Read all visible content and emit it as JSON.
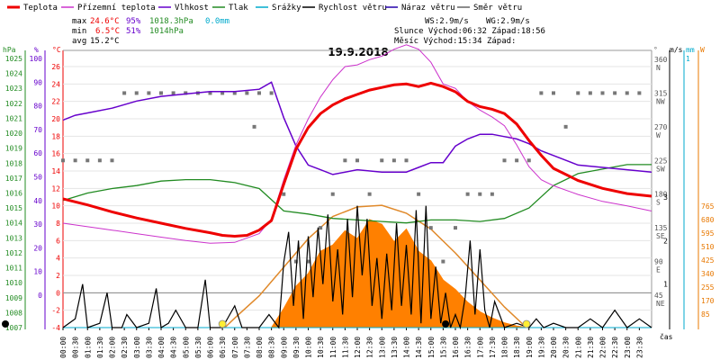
{
  "chart_data": {
    "type": "line",
    "title": "19.9.2018",
    "legend": [
      {
        "name": "Teplota",
        "color": "#ee0000"
      },
      {
        "name": "Přízemní teplota",
        "color": "#cc33cc"
      },
      {
        "name": "Vlhkost",
        "color": "#6600cc"
      },
      {
        "name": "Tlak",
        "color": "#228b22"
      },
      {
        "name": "Srážky",
        "color": "#00aacc"
      },
      {
        "name": "Rychlost větru",
        "color": "#000000"
      },
      {
        "name": "Náraz větru",
        "color": "#2200aa"
      },
      {
        "name": "Směr větru",
        "color": "#666666"
      }
    ],
    "stats": {
      "max_label": "max",
      "max_temp": "24.6°C",
      "max_hum": "95%",
      "max_press": "1018.3hPa",
      "max_rain": "0.0mm",
      "min_label": "min",
      "min_temp": "6.5°C",
      "min_hum": "51%",
      "min_press": "1014hPa",
      "avg_label": "avg",
      "avg_temp": "15.2°C"
    },
    "info": {
      "ws": "WS:2.9m/s",
      "wg": "WG:2.9m/s",
      "sun": "Slunce Východ:06:32 Západ:18:56",
      "moon": "Měsíc  Východ:15:34  Západ:"
    },
    "axes": {
      "hpa_label": "hPa",
      "pct_label": "%",
      "c_label": "°C",
      "deg_label": "°",
      "ms_label": "m/s",
      "mm_label": "mm",
      "w_label": "W",
      "hpa_ticks": [
        "1025",
        "1024",
        "1023",
        "1022",
        "1021",
        "1020",
        "1019",
        "1018",
        "1017",
        "1016",
        "1015",
        "1014",
        "1013",
        "1012",
        "1011",
        "1010",
        "1009",
        "1008",
        "1007"
      ],
      "pct_ticks": [
        "100",
        "90",
        "80",
        "70",
        "60",
        "50",
        "40",
        "30",
        "20",
        "10",
        "0"
      ],
      "c_ticks": [
        "26",
        "24",
        "22",
        "20",
        "18",
        "16",
        "14",
        "12",
        "10",
        "8",
        "6",
        "4",
        "2",
        "0",
        "-2",
        "-4"
      ],
      "dir_ticks": [
        "360 N",
        "315 NW",
        "270 W",
        "225 SW",
        "180 S",
        "135 SE",
        "90 E",
        "45 NE"
      ],
      "ms_ticks": [
        "3",
        "2",
        "1"
      ],
      "mm_ticks": [
        "1"
      ],
      "w_ticks": [
        "765",
        "680",
        "595",
        "510",
        "425",
        "340",
        "255",
        "170",
        "85"
      ],
      "time_label": "čas",
      "time_ticks": [
        "00:00",
        "00:30",
        "01:00",
        "01:30",
        "02:00",
        "02:30",
        "03:00",
        "03:30",
        "04:00",
        "04:30",
        "05:00",
        "05:30",
        "06:00",
        "06:30",
        "07:00",
        "07:30",
        "08:00",
        "08:30",
        "09:00",
        "09:30",
        "10:00",
        "10:30",
        "11:00",
        "11:30",
        "12:00",
        "12:30",
        "13:00",
        "13:30",
        "14:00",
        "14:30",
        "15:00",
        "15:30",
        "16:00",
        "16:30",
        "17:00",
        "17:30",
        "18:00",
        "18:30",
        "19:00",
        "19:30",
        "20:00",
        "20:30",
        "21:00",
        "21:30",
        "22:00",
        "22:30",
        "23:00",
        "23:30"
      ]
    },
    "x_range_hours": [
      0,
      24
    ],
    "temperature_c": [
      [
        0,
        10.8
      ],
      [
        1,
        10.1
      ],
      [
        2,
        9.3
      ],
      [
        3,
        8.6
      ],
      [
        4,
        8.0
      ],
      [
        5,
        7.4
      ],
      [
        6,
        6.9
      ],
      [
        6.5,
        6.6
      ],
      [
        7,
        6.5
      ],
      [
        7.5,
        6.6
      ],
      [
        8,
        7.2
      ],
      [
        8.5,
        8.3
      ],
      [
        9,
        12.5
      ],
      [
        9.5,
        16.5
      ],
      [
        10,
        19.0
      ],
      [
        10.5,
        20.6
      ],
      [
        11,
        21.6
      ],
      [
        11.5,
        22.3
      ],
      [
        12,
        22.8
      ],
      [
        12.5,
        23.3
      ],
      [
        13,
        23.6
      ],
      [
        13.5,
        23.9
      ],
      [
        14,
        24.0
      ],
      [
        14.5,
        23.7
      ],
      [
        15,
        24.1
      ],
      [
        15.5,
        23.7
      ],
      [
        16,
        23.1
      ],
      [
        16.5,
        22.0
      ],
      [
        17,
        21.4
      ],
      [
        17.5,
        21.1
      ],
      [
        18,
        20.6
      ],
      [
        18.5,
        19.4
      ],
      [
        19,
        17.5
      ],
      [
        19.5,
        15.8
      ],
      [
        20,
        14.3
      ],
      [
        21,
        12.9
      ],
      [
        22,
        12.0
      ],
      [
        23,
        11.4
      ],
      [
        24,
        11.1
      ]
    ],
    "ground_temperature_c": [
      [
        0,
        8.0
      ],
      [
        1,
        7.6
      ],
      [
        2,
        7.2
      ],
      [
        3,
        6.8
      ],
      [
        4,
        6.4
      ],
      [
        5,
        6.0
      ],
      [
        6,
        5.7
      ],
      [
        7,
        5.8
      ],
      [
        8,
        6.8
      ],
      [
        8.5,
        8.5
      ],
      [
        9,
        13.0
      ],
      [
        9.5,
        17.0
      ],
      [
        10,
        20.0
      ],
      [
        10.5,
        22.5
      ],
      [
        11,
        24.5
      ],
      [
        11.5,
        26.0
      ],
      [
        12,
        26.2
      ],
      [
        12.5,
        26.8
      ],
      [
        13,
        27.2
      ],
      [
        13.5,
        28.0
      ],
      [
        14,
        28.5
      ],
      [
        14.5,
        28.0
      ],
      [
        15,
        26.5
      ],
      [
        15.5,
        24.0
      ],
      [
        16,
        23.5
      ],
      [
        16.5,
        22.0
      ],
      [
        17,
        21.0
      ],
      [
        17.5,
        20.2
      ],
      [
        18,
        19.2
      ],
      [
        18.5,
        17.0
      ],
      [
        19,
        14.5
      ],
      [
        19.5,
        13.0
      ],
      [
        20,
        12.3
      ],
      [
        21,
        11.3
      ],
      [
        22,
        10.5
      ],
      [
        23,
        10.0
      ],
      [
        24,
        9.4
      ]
    ],
    "humidity_pct": [
      [
        0,
        74
      ],
      [
        0.5,
        76
      ],
      [
        1,
        77
      ],
      [
        2,
        79
      ],
      [
        3,
        82
      ],
      [
        4,
        84
      ],
      [
        5,
        85
      ],
      [
        6,
        86
      ],
      [
        7,
        86
      ],
      [
        8,
        87
      ],
      [
        8.5,
        90
      ],
      [
        9,
        75
      ],
      [
        9.5,
        63
      ],
      [
        10,
        55
      ],
      [
        10.5,
        53
      ],
      [
        11,
        51
      ],
      [
        12,
        53
      ],
      [
        13,
        52
      ],
      [
        14,
        52
      ],
      [
        14.5,
        54
      ],
      [
        15,
        56
      ],
      [
        15.5,
        56
      ],
      [
        16,
        63
      ],
      [
        16.5,
        66
      ],
      [
        17,
        68
      ],
      [
        17.5,
        68
      ],
      [
        18,
        67
      ],
      [
        18.5,
        66
      ],
      [
        19,
        64
      ],
      [
        19.5,
        61
      ],
      [
        20,
        59
      ],
      [
        20.5,
        57
      ],
      [
        21,
        55
      ],
      [
        22,
        54
      ],
      [
        23,
        53
      ],
      [
        24,
        52
      ]
    ],
    "pressure_hpa": [
      [
        0,
        1015.5
      ],
      [
        1,
        1016.0
      ],
      [
        2,
        1016.3
      ],
      [
        3,
        1016.5
      ],
      [
        4,
        1016.8
      ],
      [
        5,
        1016.9
      ],
      [
        6,
        1016.9
      ],
      [
        7,
        1016.7
      ],
      [
        8,
        1016.3
      ],
      [
        9,
        1014.8
      ],
      [
        10,
        1014.6
      ],
      [
        11,
        1014.3
      ],
      [
        12,
        1014.2
      ],
      [
        13,
        1014.1
      ],
      [
        14,
        1014.0
      ],
      [
        15,
        1014.2
      ],
      [
        16,
        1014.2
      ],
      [
        17,
        1014.1
      ],
      [
        18,
        1014.3
      ],
      [
        19,
        1015.0
      ],
      [
        20,
        1016.5
      ],
      [
        21,
        1017.3
      ],
      [
        22,
        1017.6
      ],
      [
        23,
        1017.9
      ],
      [
        24,
        1017.9
      ]
    ],
    "rain_mm": [
      [
        0,
        0
      ],
      [
        24,
        0
      ]
    ],
    "wind_speed_ms": [
      [
        0,
        0
      ],
      [
        0.5,
        0.2
      ],
      [
        0.8,
        1.0
      ],
      [
        1,
        0
      ],
      [
        1.5,
        0.1
      ],
      [
        1.8,
        0.8
      ],
      [
        2,
        0
      ],
      [
        2.4,
        0
      ],
      [
        2.6,
        0.3
      ],
      [
        3,
        0
      ],
      [
        3.5,
        0.1
      ],
      [
        3.8,
        0.9
      ],
      [
        4,
        0
      ],
      [
        4.3,
        0.1
      ],
      [
        4.6,
        0.4
      ],
      [
        5,
        0
      ],
      [
        5.5,
        0
      ],
      [
        5.8,
        1.1
      ],
      [
        6,
        0
      ],
      [
        6.5,
        0
      ],
      [
        7,
        0.5
      ],
      [
        7.3,
        0
      ],
      [
        8,
        0
      ],
      [
        8.4,
        0.3
      ],
      [
        8.8,
        0
      ],
      [
        9,
        1.5
      ],
      [
        9.2,
        2.2
      ],
      [
        9.4,
        0.5
      ],
      [
        9.6,
        2.0
      ],
      [
        9.8,
        0.2
      ],
      [
        10,
        2.1
      ],
      [
        10.2,
        0.7
      ],
      [
        10.4,
        2.3
      ],
      [
        10.6,
        1.0
      ],
      [
        10.8,
        2.6
      ],
      [
        11,
        0.6
      ],
      [
        11.2,
        1.8
      ],
      [
        11.4,
        0.3
      ],
      [
        11.6,
        2.5
      ],
      [
        11.8,
        0.7
      ],
      [
        12,
        2.8
      ],
      [
        12.2,
        1.2
      ],
      [
        12.4,
        2.5
      ],
      [
        12.6,
        0.5
      ],
      [
        12.8,
        1.6
      ],
      [
        13,
        0.2
      ],
      [
        13.2,
        1.7
      ],
      [
        13.4,
        0.4
      ],
      [
        13.6,
        2.4
      ],
      [
        13.8,
        0.5
      ],
      [
        14,
        1.9
      ],
      [
        14.2,
        0.3
      ],
      [
        14.4,
        2.7
      ],
      [
        14.6,
        0.1
      ],
      [
        14.8,
        2.8
      ],
      [
        15,
        0.2
      ],
      [
        15.2,
        1.4
      ],
      [
        15.4,
        0.1
      ],
      [
        15.6,
        0.8
      ],
      [
        15.8,
        0.0
      ],
      [
        16,
        0.3
      ],
      [
        16.2,
        0.0
      ],
      [
        16.4,
        0.7
      ],
      [
        16.6,
        2.0
      ],
      [
        16.8,
        0.3
      ],
      [
        17,
        1.8
      ],
      [
        17.2,
        0.4
      ],
      [
        17.4,
        0.0
      ],
      [
        17.6,
        0.6
      ],
      [
        18,
        0
      ],
      [
        18.5,
        0.1
      ],
      [
        19,
        0
      ],
      [
        19.3,
        0.2
      ],
      [
        19.6,
        0
      ],
      [
        20,
        0.1
      ],
      [
        20.5,
        0
      ],
      [
        21,
        0
      ],
      [
        21.5,
        0.2
      ],
      [
        22,
        0
      ],
      [
        22.5,
        0.4
      ],
      [
        23,
        0
      ],
      [
        23.5,
        0.2
      ],
      [
        24,
        0
      ]
    ],
    "wind_direction_deg": [
      [
        0,
        225
      ],
      [
        0.5,
        225
      ],
      [
        1,
        225
      ],
      [
        1.5,
        225
      ],
      [
        2,
        225
      ],
      [
        2.5,
        315
      ],
      [
        3,
        315
      ],
      [
        3.5,
        315
      ],
      [
        4,
        315
      ],
      [
        4.5,
        315
      ],
      [
        5,
        315
      ],
      [
        5.5,
        315
      ],
      [
        6,
        315
      ],
      [
        6.5,
        315
      ],
      [
        7,
        315
      ],
      [
        7.5,
        315
      ],
      [
        7.8,
        270
      ],
      [
        8,
        315
      ],
      [
        8.5,
        315
      ],
      [
        9,
        180
      ],
      [
        9.5,
        90
      ],
      [
        10,
        90
      ],
      [
        10.5,
        135
      ],
      [
        11,
        180
      ],
      [
        11.5,
        225
      ],
      [
        12,
        225
      ],
      [
        12.5,
        180
      ],
      [
        13,
        225
      ],
      [
        13.5,
        225
      ],
      [
        14,
        225
      ],
      [
        14.5,
        180
      ],
      [
        15,
        135
      ],
      [
        15.5,
        90
      ],
      [
        16,
        135
      ],
      [
        16.5,
        180
      ],
      [
        17,
        180
      ],
      [
        17.5,
        180
      ],
      [
        18,
        225
      ],
      [
        18.5,
        225
      ],
      [
        19,
        225
      ],
      [
        19.5,
        315
      ],
      [
        20,
        315
      ],
      [
        20.5,
        270
      ],
      [
        21,
        315
      ],
      [
        21.5,
        315
      ],
      [
        22,
        315
      ],
      [
        22.5,
        315
      ],
      [
        23,
        315
      ],
      [
        23.5,
        315
      ]
    ],
    "solar_w": [
      [
        0,
        0
      ],
      [
        8.5,
        0
      ],
      [
        9,
        120
      ],
      [
        9.5,
        260
      ],
      [
        10,
        340
      ],
      [
        10.5,
        480
      ],
      [
        11,
        520
      ],
      [
        11.5,
        610
      ],
      [
        12,
        560
      ],
      [
        12.5,
        680
      ],
      [
        13,
        650
      ],
      [
        13.5,
        540
      ],
      [
        14,
        620
      ],
      [
        14.5,
        480
      ],
      [
        15,
        420
      ],
      [
        15.5,
        300
      ],
      [
        16,
        240
      ],
      [
        16.5,
        160
      ],
      [
        17,
        100
      ],
      [
        17.5,
        60
      ],
      [
        18,
        30
      ],
      [
        18.5,
        10
      ],
      [
        19,
        0
      ],
      [
        24,
        0
      ]
    ],
    "solar_theoretical_w": [
      [
        6.6,
        0
      ],
      [
        7,
        60
      ],
      [
        8,
        200
      ],
      [
        9,
        380
      ],
      [
        10,
        560
      ],
      [
        11,
        700
      ],
      [
        12,
        760
      ],
      [
        13,
        770
      ],
      [
        14,
        720
      ],
      [
        15,
        620
      ],
      [
        16,
        470
      ],
      [
        17,
        300
      ],
      [
        18,
        130
      ],
      [
        18.9,
        0
      ]
    ],
    "markers": {
      "sunrise_hour": 6.5,
      "sunset_hour": 18.9,
      "moonrise_hour": 15.6
    }
  }
}
